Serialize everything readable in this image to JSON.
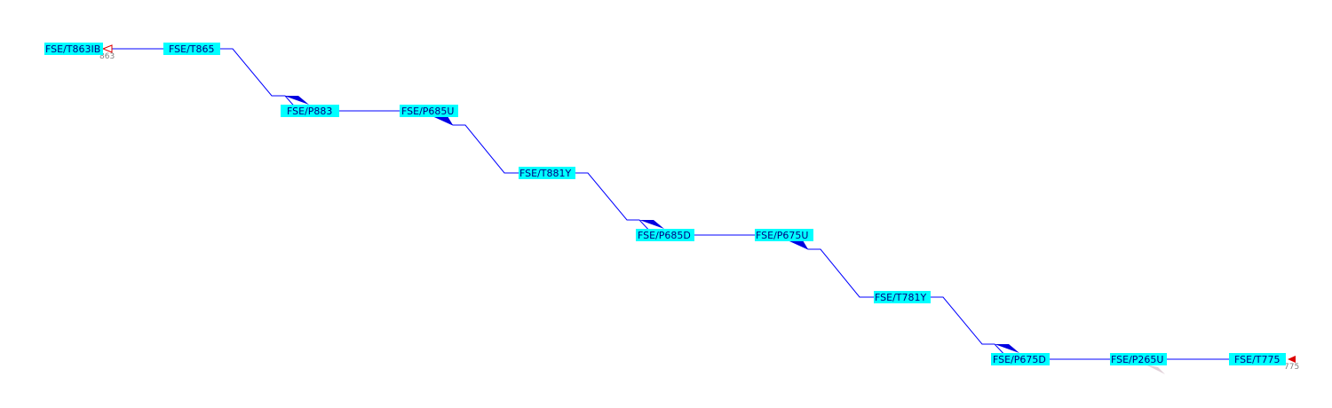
{
  "colors": {
    "node_fill": "#00ffff",
    "node_text": "#000080",
    "line": "#0000ff",
    "wedge": "#0000e0",
    "wedge_faded": "#e0d0d8",
    "end_marker": "#dd0000",
    "end_text": "#808080"
  },
  "icons": {
    "left_end": "open-triangle-marker",
    "right_end": "filled-triangle-marker"
  },
  "ends": {
    "left": "863",
    "right": "775"
  },
  "nodes": [
    {
      "id": "n0",
      "label": "FSE/T863IB"
    },
    {
      "id": "n1",
      "label": "FSE/T865"
    },
    {
      "id": "n2",
      "label": "FSE/P883"
    },
    {
      "id": "n3",
      "label": "FSE/P685U"
    },
    {
      "id": "n4",
      "label": "FSE/T881Y"
    },
    {
      "id": "n5",
      "label": "FSE/P685D"
    },
    {
      "id": "n6",
      "label": "FSE/P675U"
    },
    {
      "id": "n7",
      "label": "FSE/T781Y"
    },
    {
      "id": "n8",
      "label": "FSE/P675D"
    },
    {
      "id": "n9",
      "label": "FSE/P265U"
    },
    {
      "id": "n10",
      "label": "FSE/T775"
    }
  ]
}
